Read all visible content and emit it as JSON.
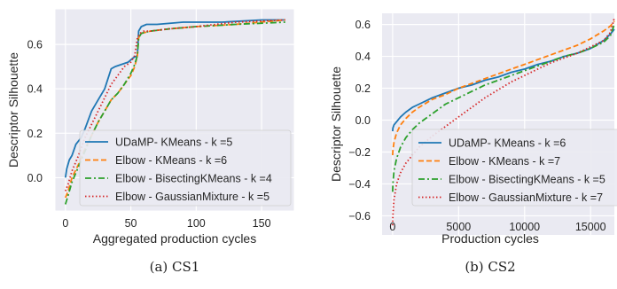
{
  "chart_data": [
    {
      "id": "cs1",
      "type": "line",
      "caption": "(a) CS1",
      "xlabel": "Aggregated production cycles",
      "ylabel": "Descriptor Silhouette",
      "xlim": [
        -8,
        175
      ],
      "ylim": [
        -0.15,
        0.76
      ],
      "xticks": [
        0,
        50,
        100,
        150
      ],
      "yticks": [
        0.0,
        0.2,
        0.4,
        0.6
      ],
      "ytick_labels": [
        "0.0",
        "0.2",
        "0.4",
        "0.6"
      ],
      "grid": true,
      "legend_position": "lower-right",
      "series": [
        {
          "name": "UDaMP- KMeans - k =5",
          "color": "#1f77b4",
          "dash": "solid",
          "x": [
            0,
            1,
            3,
            5,
            8,
            12,
            15,
            20,
            25,
            30,
            35,
            38,
            43,
            48,
            52,
            55,
            56,
            58,
            62,
            70,
            90,
            120,
            150,
            168
          ],
          "y": [
            0.0,
            0.04,
            0.08,
            0.1,
            0.15,
            0.18,
            0.22,
            0.3,
            0.35,
            0.4,
            0.49,
            0.5,
            0.51,
            0.52,
            0.54,
            0.55,
            0.66,
            0.68,
            0.69,
            0.69,
            0.7,
            0.7,
            0.71,
            0.71
          ]
        },
        {
          "name": "Elbow - KMeans - k =6",
          "color": "#ff7f0e",
          "dash": "dashed",
          "x": [
            0,
            2,
            5,
            10,
            15,
            20,
            25,
            30,
            35,
            40,
            45,
            50,
            53,
            55,
            56,
            58,
            65,
            80,
            100,
            130,
            168
          ],
          "y": [
            -0.09,
            -0.06,
            0.0,
            0.06,
            0.13,
            0.19,
            0.25,
            0.3,
            0.35,
            0.38,
            0.42,
            0.46,
            0.5,
            0.55,
            0.63,
            0.65,
            0.66,
            0.67,
            0.68,
            0.69,
            0.71
          ]
        },
        {
          "name": "Elbow - BisectingKMeans - k =4",
          "color": "#2ca02c",
          "dash": "dashdot",
          "x": [
            0,
            2,
            5,
            10,
            15,
            20,
            25,
            30,
            35,
            40,
            45,
            50,
            53,
            55,
            56,
            58,
            65,
            80,
            100,
            130,
            168
          ],
          "y": [
            -0.12,
            -0.08,
            -0.02,
            0.05,
            0.12,
            0.19,
            0.25,
            0.3,
            0.35,
            0.38,
            0.42,
            0.47,
            0.51,
            0.55,
            0.63,
            0.65,
            0.66,
            0.67,
            0.68,
            0.69,
            0.7
          ]
        },
        {
          "name": "Elbow - GaussianMixture - k =5",
          "color": "#d62728",
          "dash": "dotted",
          "x": [
            0,
            2,
            5,
            10,
            15,
            20,
            25,
            30,
            35,
            40,
            45,
            50,
            53,
            55,
            57,
            60,
            65,
            80,
            100,
            130,
            168
          ],
          "y": [
            -0.06,
            -0.03,
            0.03,
            0.1,
            0.18,
            0.24,
            0.3,
            0.36,
            0.42,
            0.46,
            0.5,
            0.52,
            0.55,
            0.63,
            0.65,
            0.66,
            0.66,
            0.67,
            0.68,
            0.7,
            0.71
          ]
        }
      ]
    },
    {
      "id": "cs2",
      "type": "line",
      "caption": "(b) CS2",
      "xlabel": "Production cycles",
      "ylabel": "Descriptor Silhouette",
      "xlim": [
        -800,
        16800
      ],
      "ylim": [
        -0.72,
        0.67
      ],
      "xticks": [
        0,
        5000,
        10000,
        15000
      ],
      "yticks": [
        -0.6,
        -0.4,
        -0.2,
        0.0,
        0.2,
        0.4,
        0.6
      ],
      "ytick_labels": [
        "−0.6",
        "−0.4",
        "−0.2",
        "0.0",
        "0.2",
        "0.4",
        "0.6"
      ],
      "grid": true,
      "legend_position": "lower-right",
      "series": [
        {
          "name": "UDaMP- KMeans - k =6",
          "color": "#1f77b4",
          "dash": "solid",
          "x": [
            0,
            20,
            100,
            300,
            600,
            1000,
            1500,
            2000,
            3000,
            4000,
            5000,
            6000,
            7000,
            8000,
            9000,
            10000,
            11000,
            12000,
            13000,
            14000,
            15000,
            16000,
            16500,
            16800
          ],
          "y": [
            -0.07,
            -0.05,
            -0.03,
            -0.01,
            0.02,
            0.05,
            0.08,
            0.1,
            0.14,
            0.17,
            0.2,
            0.22,
            0.25,
            0.27,
            0.3,
            0.32,
            0.35,
            0.37,
            0.4,
            0.42,
            0.45,
            0.5,
            0.54,
            0.57
          ]
        },
        {
          "name": "Elbow - KMeans - k =7",
          "color": "#ff7f0e",
          "dash": "dashed",
          "x": [
            0,
            20,
            100,
            300,
            600,
            1000,
            1500,
            2000,
            3000,
            4000,
            5000,
            6000,
            7000,
            8000,
            9000,
            10000,
            11000,
            12000,
            13000,
            14000,
            15000,
            16000,
            16500,
            16800
          ],
          "y": [
            -0.22,
            -0.19,
            -0.14,
            -0.08,
            -0.03,
            0.01,
            0.05,
            0.08,
            0.13,
            0.16,
            0.2,
            0.23,
            0.26,
            0.29,
            0.32,
            0.35,
            0.38,
            0.41,
            0.44,
            0.47,
            0.51,
            0.56,
            0.59,
            0.62
          ]
        },
        {
          "name": "Elbow - BisectingKMeans - k =5",
          "color": "#2ca02c",
          "dash": "dashdot",
          "x": [
            0,
            20,
            100,
            300,
            600,
            1000,
            1500,
            2000,
            3000,
            4000,
            5000,
            6000,
            7000,
            8000,
            9000,
            10000,
            11000,
            12000,
            13000,
            14000,
            15000,
            16000,
            16500,
            16800
          ],
          "y": [
            -0.45,
            -0.4,
            -0.32,
            -0.24,
            -0.17,
            -0.11,
            -0.06,
            -0.02,
            0.04,
            0.1,
            0.14,
            0.18,
            0.22,
            0.25,
            0.28,
            0.31,
            0.34,
            0.37,
            0.4,
            0.42,
            0.45,
            0.49,
            0.53,
            0.6
          ]
        },
        {
          "name": "Elbow - GaussianMixture - k =7",
          "color": "#d62728",
          "dash": "dotted",
          "x": [
            0,
            20,
            100,
            300,
            600,
            1000,
            1500,
            2000,
            3000,
            4000,
            5000,
            6000,
            7000,
            8000,
            9000,
            10000,
            11000,
            12000,
            13000,
            14000,
            15000,
            16000,
            16500,
            16800
          ],
          "y": [
            -0.66,
            -0.6,
            -0.5,
            -0.4,
            -0.33,
            -0.27,
            -0.22,
            -0.17,
            -0.1,
            -0.04,
            0.02,
            0.08,
            0.14,
            0.19,
            0.24,
            0.28,
            0.32,
            0.36,
            0.39,
            0.42,
            0.46,
            0.5,
            0.55,
            0.64
          ]
        }
      ]
    }
  ]
}
